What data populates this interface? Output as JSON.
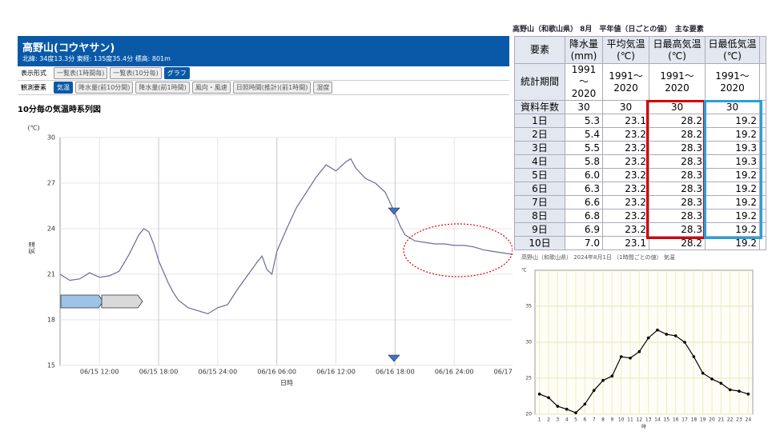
{
  "header": {
    "title": "高野山(コウヤサン)",
    "subtitle": "北緯: 34度13.3分 東経: 135度35.4分 標高: 801m"
  },
  "controls": {
    "format_label": "表示形式",
    "format_buttons": [
      "一覧表(1時間毎)",
      "一覧表(10分毎)",
      "グラフ"
    ],
    "element_label": "観測要素",
    "element_buttons": [
      "気温",
      "降水量(前10分間)",
      "降水量(前1時間)",
      "風向・風速",
      "日照時間(推計)(前1時間)",
      "湿度"
    ]
  },
  "chart_data": [
    {
      "type": "line",
      "title": "10分毎の気温時系列図",
      "y_unit": "(℃)",
      "ylabel": "気温",
      "xlabel": "日時",
      "grid": true,
      "x": [
        8,
        9,
        10,
        11,
        12,
        13,
        14,
        15,
        16,
        16.5,
        17,
        17.5,
        18,
        19,
        19.5,
        20,
        21,
        22,
        23,
        24,
        25,
        26,
        27,
        28,
        28.5,
        29,
        29.5,
        30,
        31,
        32,
        33,
        34,
        35,
        36,
        37,
        37.5,
        38,
        39,
        40,
        41,
        42,
        42.5,
        43,
        44,
        45,
        46,
        47,
        48,
        49,
        50,
        51,
        52,
        53,
        54
      ],
      "series": [
        {
          "name": "気温",
          "color": "#6a6a9c",
          "values": [
            21.0,
            20.6,
            20.7,
            21.1,
            20.8,
            20.9,
            21.2,
            22.3,
            23.6,
            24.0,
            23.8,
            23.0,
            21.9,
            20.4,
            19.8,
            19.3,
            18.8,
            18.6,
            18.4,
            18.8,
            19.0,
            20.0,
            20.9,
            21.8,
            22.2,
            21.3,
            21.0,
            22.5,
            24.0,
            25.4,
            26.4,
            27.4,
            28.2,
            27.8,
            28.4,
            28.6,
            28.0,
            27.3,
            27.0,
            26.4,
            25.0,
            24.2,
            23.6,
            23.2,
            23.1,
            23.0,
            23.0,
            22.9,
            22.9,
            22.8,
            22.6,
            22.5,
            22.4,
            22.3
          ]
        }
      ],
      "xlim": [
        8,
        54
      ],
      "xticks": [
        {
          "value": 12,
          "label": "06/15 12:00"
        },
        {
          "value": 18,
          "label": "06/15 18:00"
        },
        {
          "value": 24,
          "label": "06/15 24:00"
        },
        {
          "value": 30,
          "label": "06/16 06:00"
        },
        {
          "value": 36,
          "label": "06/16 12:00"
        },
        {
          "value": 42,
          "label": "06/16 18:00"
        },
        {
          "value": 48,
          "label": "06/16 24:00"
        },
        {
          "value": 54,
          "label": "06/17 06:00"
        }
      ],
      "ylim": [
        15,
        30
      ],
      "yticks": [
        15,
        18,
        21,
        24,
        27,
        30
      ]
    },
    {
      "type": "line",
      "title": "高野山（和歌山県） 2024年8月1日 （1時間ごとの値） 気温",
      "y_unit": "℃",
      "xlabel": "時",
      "grid": true,
      "categories": [
        "1",
        "2",
        "3",
        "4",
        "5",
        "6",
        "7",
        "8",
        "9",
        "10",
        "11",
        "12",
        "13",
        "14",
        "15",
        "16",
        "17",
        "18",
        "19",
        "20",
        "21",
        "22",
        "23",
        "24"
      ],
      "series": [
        {
          "name": "気温",
          "color": "#000000",
          "values": [
            22.8,
            22.3,
            21.1,
            20.7,
            20.2,
            21.4,
            23.3,
            24.7,
            25.3,
            28.0,
            27.8,
            28.7,
            30.6,
            31.7,
            31.1,
            30.9,
            30.0,
            28.0,
            25.7,
            24.9,
            24.3,
            23.4,
            23.2,
            22.8
          ]
        }
      ],
      "ylim": [
        20,
        40
      ],
      "yticks": [
        20,
        25,
        30,
        35
      ]
    }
  ],
  "table": {
    "title": "高野山（和歌山県） 8月　平年値（日ごとの値）　主な要素",
    "header": [
      "要素",
      "降水量\n(mm)",
      "平均気温\n(℃)",
      "日最高気温\n(℃)",
      "日最低気温\n(℃)"
    ],
    "rows": [
      [
        "統計期間",
        "1991～\n2020",
        "1991～\n2020",
        "1991～\n2020",
        "1991～\n2020"
      ],
      [
        "資料年数",
        "30",
        "30",
        "30",
        "30"
      ],
      [
        "1日",
        "5.3",
        "23.1",
        "28.2",
        "19.2"
      ],
      [
        "2日",
        "5.4",
        "23.2",
        "28.2",
        "19.2"
      ],
      [
        "3日",
        "5.5",
        "23.2",
        "28.3",
        "19.3"
      ],
      [
        "4日",
        "5.8",
        "23.2",
        "28.3",
        "19.3"
      ],
      [
        "5日",
        "6.0",
        "23.2",
        "28.3",
        "19.2"
      ],
      [
        "6日",
        "6.3",
        "23.2",
        "28.3",
        "19.2"
      ],
      [
        "7日",
        "6.6",
        "23.2",
        "28.3",
        "19.2"
      ],
      [
        "8日",
        "6.8",
        "23.2",
        "28.3",
        "19.2"
      ],
      [
        "9日",
        "6.9",
        "23.2",
        "28.3",
        "19.2"
      ],
      [
        "10日",
        "7.0",
        "23.1",
        "28.2",
        "19.2"
      ]
    ]
  }
}
